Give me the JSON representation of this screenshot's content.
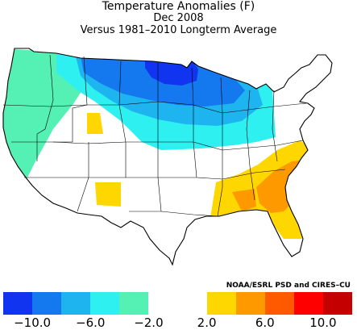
{
  "title": "Temperature Anomalies (F)",
  "subtitle": "Dec 2008",
  "subtitle2": "Versus 1981–2010 Longterm Average",
  "credit": "NOAA/ESRL PSD and CIRES–CU",
  "legend": {
    "colors": [
      "#1034f0",
      "#1478ee",
      "#1eb4f0",
      "#2ff0f0",
      "#55f0b4",
      "#ffffff",
      "#ffffff",
      "#ffd700",
      "#ff9900",
      "#ff5a00",
      "#ff0000",
      "#c40000"
    ],
    "ticks": [
      {
        "value": -10,
        "label": "−10.0"
      },
      {
        "value": -6,
        "label": "−6.0"
      },
      {
        "value": -2,
        "label": "−2.0"
      },
      {
        "value": 2,
        "label": "2.0"
      },
      {
        "value": 6,
        "label": "6.0"
      },
      {
        "value": 10,
        "label": "10.0"
      }
    ]
  }
}
